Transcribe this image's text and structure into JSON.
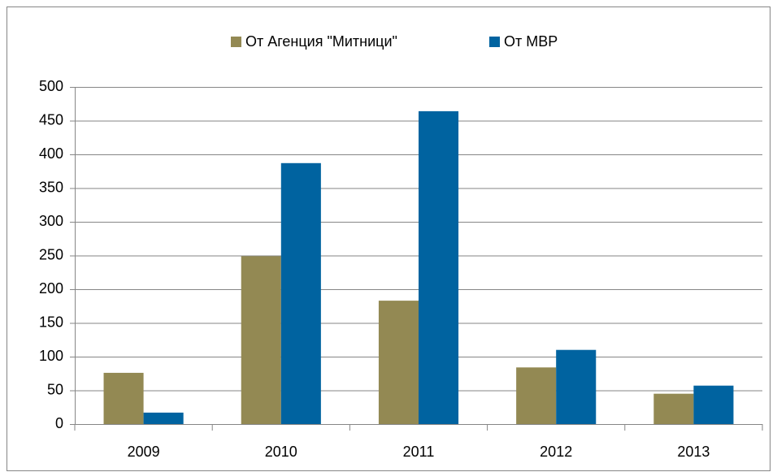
{
  "chart_data": {
    "type": "bar",
    "categories": [
      "2009",
      "2010",
      "2011",
      "2012",
      "2013"
    ],
    "series": [
      {
        "name": "От Агенция \"Митници\"",
        "color": "#938953",
        "values": [
          76,
          249,
          183,
          84,
          45
        ]
      },
      {
        "name": "От МВР",
        "color": "#0063a0",
        "values": [
          17,
          387,
          464,
          110,
          57
        ]
      }
    ],
    "ylim": [
      0,
      500
    ],
    "yticks": [
      0,
      50,
      100,
      150,
      200,
      250,
      300,
      350,
      400,
      450,
      500
    ],
    "grid": true,
    "legend": "top"
  }
}
